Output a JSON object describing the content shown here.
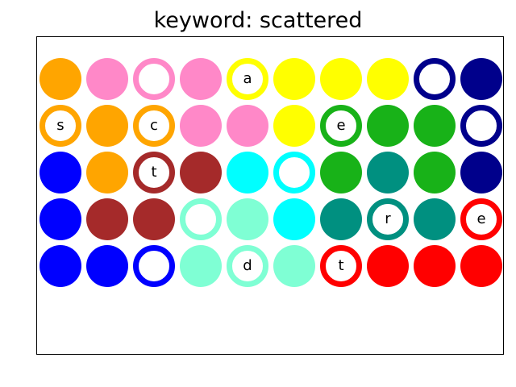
{
  "title": "keyword: scattered",
  "palette": {
    "orange": "#ffa500",
    "pink": "#ff88c8",
    "yellow": "#ffff00",
    "navy": "#00008b",
    "green": "#18b218",
    "blue": "#0000ff",
    "brown": "#a52a2a",
    "cyan": "#00ffff",
    "teal": "#009080",
    "mint": "#7fffd4",
    "red": "#ff0000"
  },
  "grid": [
    [
      {
        "color": "orange",
        "style": "filled",
        "letter": ""
      },
      {
        "color": "pink",
        "style": "filled",
        "letter": ""
      },
      {
        "color": "pink",
        "style": "ring",
        "letter": ""
      },
      {
        "color": "pink",
        "style": "filled",
        "letter": ""
      },
      {
        "color": "yellow",
        "style": "ring",
        "letter": "a"
      },
      {
        "color": "yellow",
        "style": "filled",
        "letter": ""
      },
      {
        "color": "yellow",
        "style": "filled",
        "letter": ""
      },
      {
        "color": "yellow",
        "style": "filled",
        "letter": ""
      },
      {
        "color": "navy",
        "style": "ring",
        "letter": ""
      },
      {
        "color": "navy",
        "style": "filled",
        "letter": ""
      }
    ],
    [
      {
        "color": "orange",
        "style": "ring",
        "letter": "s"
      },
      {
        "color": "orange",
        "style": "filled",
        "letter": ""
      },
      {
        "color": "orange",
        "style": "ring",
        "letter": "c"
      },
      {
        "color": "pink",
        "style": "filled",
        "letter": ""
      },
      {
        "color": "pink",
        "style": "filled",
        "letter": ""
      },
      {
        "color": "yellow",
        "style": "filled",
        "letter": ""
      },
      {
        "color": "green",
        "style": "ring",
        "letter": "e"
      },
      {
        "color": "green",
        "style": "filled",
        "letter": ""
      },
      {
        "color": "green",
        "style": "filled",
        "letter": ""
      },
      {
        "color": "navy",
        "style": "ring",
        "letter": ""
      }
    ],
    [
      {
        "color": "blue",
        "style": "filled",
        "letter": ""
      },
      {
        "color": "orange",
        "style": "filled",
        "letter": ""
      },
      {
        "color": "brown",
        "style": "ring",
        "letter": "t"
      },
      {
        "color": "brown",
        "style": "filled",
        "letter": ""
      },
      {
        "color": "cyan",
        "style": "filled",
        "letter": ""
      },
      {
        "color": "cyan",
        "style": "ring",
        "letter": ""
      },
      {
        "color": "green",
        "style": "filled",
        "letter": ""
      },
      {
        "color": "teal",
        "style": "filled",
        "letter": ""
      },
      {
        "color": "green",
        "style": "filled",
        "letter": ""
      },
      {
        "color": "navy",
        "style": "filled",
        "letter": ""
      }
    ],
    [
      {
        "color": "blue",
        "style": "filled",
        "letter": ""
      },
      {
        "color": "brown",
        "style": "filled",
        "letter": ""
      },
      {
        "color": "brown",
        "style": "filled",
        "letter": ""
      },
      {
        "color": "mint",
        "style": "ring",
        "letter": ""
      },
      {
        "color": "mint",
        "style": "filled",
        "letter": ""
      },
      {
        "color": "cyan",
        "style": "filled",
        "letter": ""
      },
      {
        "color": "teal",
        "style": "filled",
        "letter": ""
      },
      {
        "color": "teal",
        "style": "ring",
        "letter": "r"
      },
      {
        "color": "teal",
        "style": "filled",
        "letter": ""
      },
      {
        "color": "red",
        "style": "ring",
        "letter": "e"
      }
    ],
    [
      {
        "color": "blue",
        "style": "filled",
        "letter": ""
      },
      {
        "color": "blue",
        "style": "filled",
        "letter": ""
      },
      {
        "color": "blue",
        "style": "ring",
        "letter": ""
      },
      {
        "color": "mint",
        "style": "filled",
        "letter": ""
      },
      {
        "color": "mint",
        "style": "ring",
        "letter": "d"
      },
      {
        "color": "mint",
        "style": "filled",
        "letter": ""
      },
      {
        "color": "red",
        "style": "ring",
        "letter": "t"
      },
      {
        "color": "red",
        "style": "filled",
        "letter": ""
      },
      {
        "color": "red",
        "style": "filled",
        "letter": ""
      },
      {
        "color": "red",
        "style": "filled",
        "letter": ""
      }
    ]
  ]
}
